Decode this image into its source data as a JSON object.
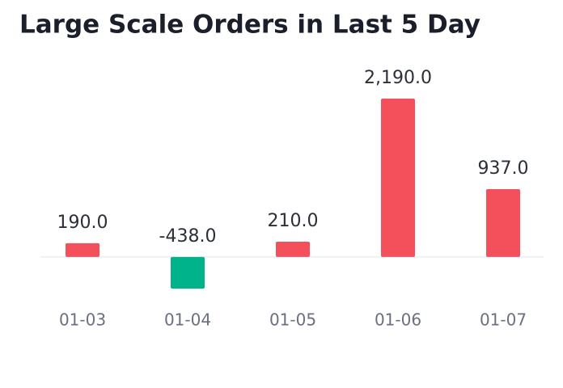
{
  "chart_data": {
    "type": "bar",
    "title": "Large Scale Orders in Last 5 Day",
    "categories": [
      "01-03",
      "01-04",
      "01-05",
      "01-06",
      "01-07"
    ],
    "values": [
      190,
      -438,
      210,
      2190,
      937
    ],
    "value_labels": [
      "190.0",
      "-438.0",
      "210.0",
      "2,190.0",
      "937.0"
    ],
    "color": "#f4505c",
    "negative_color": "#00b38a"
  }
}
